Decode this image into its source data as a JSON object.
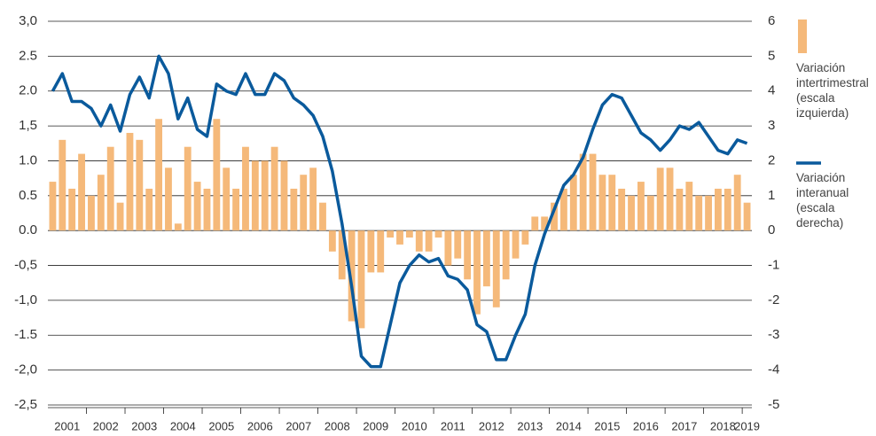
{
  "chart_data": {
    "type": "bar_line",
    "categories": [
      "2001",
      null,
      null,
      null,
      "2002",
      null,
      null,
      null,
      "2003",
      null,
      null,
      null,
      "2004",
      null,
      null,
      null,
      "2005",
      null,
      null,
      null,
      "2006",
      null,
      null,
      null,
      "2007",
      null,
      null,
      null,
      "2008",
      null,
      null,
      null,
      "2009",
      null,
      null,
      null,
      "2010",
      null,
      null,
      null,
      "2011",
      null,
      null,
      null,
      "2012",
      null,
      null,
      null,
      "2013",
      null,
      null,
      null,
      "2014",
      null,
      null,
      null,
      "2015",
      null,
      null,
      null,
      "2016",
      null,
      null,
      null,
      "2017",
      null,
      null,
      null,
      "2018",
      null,
      null,
      null,
      "2019"
    ],
    "series": [
      {
        "name": "Variación intertrimestral (escala izquierda)",
        "color": "#f5b97a",
        "type": "bar",
        "axis": "y",
        "values": [
          0.7,
          1.3,
          0.6,
          1.1,
          0.5,
          0.8,
          1.2,
          0.4,
          1.4,
          1.3,
          0.6,
          1.6,
          0.9,
          0.1,
          1.2,
          0.7,
          0.6,
          1.6,
          0.9,
          0.6,
          1.2,
          1.0,
          1.0,
          1.2,
          1.0,
          0.6,
          0.8,
          0.9,
          0.4,
          -0.3,
          -0.7,
          -1.3,
          -1.4,
          -0.6,
          -0.6,
          -0.1,
          -0.2,
          -0.1,
          -0.3,
          -0.3,
          -0.1,
          -0.5,
          -0.4,
          -0.7,
          -1.2,
          -0.8,
          -1.1,
          -0.7,
          -0.4,
          -0.2,
          0.2,
          0.2,
          0.4,
          0.6,
          0.8,
          1.1,
          1.1,
          0.8,
          0.8,
          0.6,
          0.5,
          0.7,
          0.5,
          0.9,
          0.9,
          0.6,
          0.7,
          0.5,
          0.5,
          0.6,
          0.6,
          0.8,
          0.4
        ]
      },
      {
        "name": "Variación interanual (escala derecha)",
        "color": "#0a5a9c",
        "type": "line",
        "axis": "y2",
        "values": [
          4.0,
          4.5,
          3.7,
          3.7,
          3.5,
          3.0,
          3.6,
          2.85,
          3.9,
          4.4,
          3.8,
          5.0,
          4.5,
          3.2,
          3.8,
          2.9,
          2.7,
          4.2,
          4.0,
          3.9,
          4.5,
          3.9,
          3.9,
          4.5,
          4.3,
          3.8,
          3.6,
          3.3,
          2.7,
          1.7,
          0.2,
          -1.6,
          -3.6,
          -3.9,
          -3.9,
          -2.7,
          -1.5,
          -1.0,
          -0.7,
          -0.9,
          -0.8,
          -1.3,
          -1.4,
          -1.7,
          -2.7,
          -2.9,
          -3.7,
          -3.7,
          -3.0,
          -2.4,
          -1.0,
          -0.1,
          0.6,
          1.3,
          1.6,
          2.1,
          2.9,
          3.6,
          3.9,
          3.8,
          3.3,
          2.8,
          2.6,
          2.3,
          2.6,
          3.0,
          2.9,
          3.1,
          2.7,
          2.3,
          2.2,
          2.6,
          2.5
        ]
      }
    ],
    "ylim": [
      -2.5,
      3.0
    ],
    "yticks": [
      {
        "value": 3.0,
        "label": "3,0"
      },
      {
        "value": 2.5,
        "label": "2.5"
      },
      {
        "value": 2.0,
        "label": "2.0"
      },
      {
        "value": 1.5,
        "label": "1,5"
      },
      {
        "value": 1.0,
        "label": "1.0"
      },
      {
        "value": 0.5,
        "label": "0.5"
      },
      {
        "value": 0.0,
        "label": "0.0"
      },
      {
        "value": -0.5,
        "label": "-0,5"
      },
      {
        "value": -1.0,
        "label": "-1,0"
      },
      {
        "value": -1.5,
        "label": "-1.5"
      },
      {
        "value": -2.0,
        "label": "-2,0"
      },
      {
        "value": -2.5,
        "label": "-2,5"
      }
    ],
    "y2lim": [
      -5,
      6
    ],
    "y2ticks": [
      6,
      5,
      4,
      3,
      2,
      1,
      0,
      -1,
      -2,
      -3,
      -4,
      -5
    ],
    "grid": true,
    "legend": "right"
  }
}
